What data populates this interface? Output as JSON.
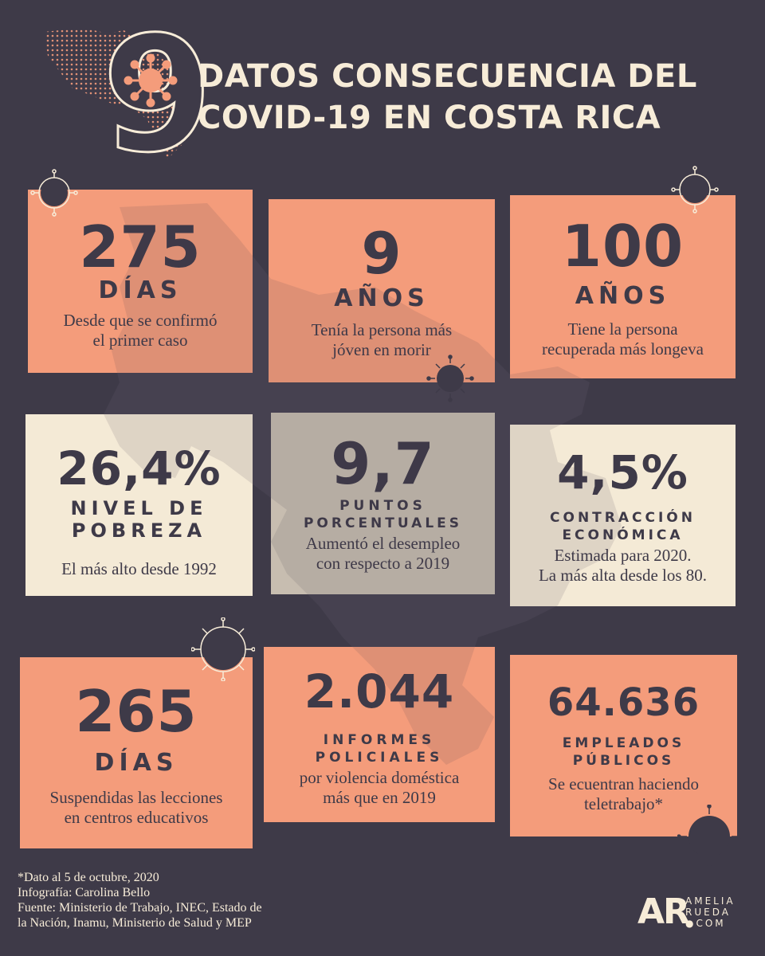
{
  "header": {
    "big_number": "9",
    "title_line1": "DATOS CONSECUENCIA DEL",
    "title_line2": "COVID-19 EN COSTA RICA"
  },
  "cards": [
    {
      "number": "275",
      "unit": "DÍAS",
      "desc1": "Desde que se confirmó",
      "desc2": "el primer caso"
    },
    {
      "number": "9",
      "unit": "AÑOS",
      "desc1": "Tenía la persona más",
      "desc2": "jóven en morir"
    },
    {
      "number": "100",
      "unit": "AÑOS",
      "desc1": "Tiene la persona",
      "desc2": "recuperada más longeva"
    },
    {
      "number": "26,4%",
      "unit": "NIVEL DE",
      "unit2": "POBREZA",
      "desc1": "El más alto desde 1992"
    },
    {
      "number": "9,7",
      "unit": "PUNTOS",
      "unit2": "PORCENTUALES",
      "desc1": "Aumentó el desempleo",
      "desc2": "con respecto a 2019"
    },
    {
      "number": "4,5%",
      "unit": "CONTRACCIÓN",
      "unit2": "ECONÓMICA",
      "desc1": "Estimada para 2020.",
      "desc2": "La más alta desde los 80."
    },
    {
      "number": "265",
      "unit": "DÍAS",
      "desc1": "Suspendidas las lecciones",
      "desc2": "en centros educativos"
    },
    {
      "number": "2.044",
      "unit": "INFORMES",
      "unit2": "POLICIALES",
      "desc1": "por violencia doméstica",
      "desc2": "más que en 2019"
    },
    {
      "number": "64.636",
      "unit": "EMPLEADOS",
      "unit2": "PÚBLICOS",
      "desc1": "Se ecuentran haciendo",
      "desc2": "teletrabajo*"
    }
  ],
  "footer": {
    "line1": "*Dato al 5 de octubre, 2020",
    "line2": "Infografía: Carolina Bello",
    "line3": "Fuente:  Ministerio de Trabajo, INEC, Estado de",
    "line4": "la Nación, Inamu, Ministerio de Salud y MEP"
  },
  "logo": {
    "letters": "AR",
    "line1": "AMELIA",
    "line2": "RUEDA",
    "line3": "●COM"
  },
  "colors": {
    "background": "#3e3a48",
    "salmon": "#f49c7b",
    "cream": "#f4ead6",
    "gray": "#c7bdb0",
    "text_light": "#f7ecd8",
    "text_dark": "#3e3a48"
  },
  "icons": [
    "virus-icon",
    "costa-rica-map"
  ]
}
